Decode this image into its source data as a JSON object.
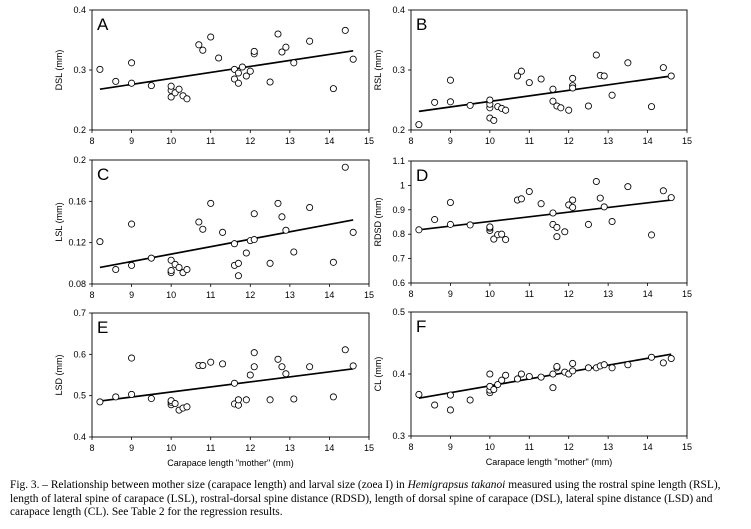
{
  "figure": {
    "caption": {
      "before": "Fig. 3. – Relationship between mother size (carapace length) and larval size (zoea I) in ",
      "species": "Hemigrapsus takanoi",
      "after": " measured using the rostral spine length (RSL), length of lateral spine of carapace (LSL), rostral-dorsal spine distance (RDSD), length of dorsal spine of carapace (DSL), lateral spine distance (LSD) and carapace length (CL). See Table 2 for the regression results."
    }
  },
  "chart_data": [
    {
      "panel": "A",
      "type": "scatter",
      "ylabel": "DSL (mm)",
      "xlabel": "",
      "xlim": [
        8,
        15
      ],
      "ylim": [
        0.2,
        0.4
      ],
      "xticks": [
        "8",
        "9",
        "10",
        "11",
        "12",
        "13",
        "14",
        "15"
      ],
      "yticks": [
        "0.2",
        "0.3",
        "0.4"
      ],
      "trendline": [
        [
          8.2,
          0.268
        ],
        [
          14.6,
          0.332
        ]
      ],
      "points": [
        [
          8.2,
          0.301
        ],
        [
          8.6,
          0.281
        ],
        [
          9.0,
          0.278
        ],
        [
          9.0,
          0.312
        ],
        [
          9.5,
          0.274
        ],
        [
          10.0,
          0.255
        ],
        [
          10.0,
          0.266
        ],
        [
          10.0,
          0.273
        ],
        [
          10.1,
          0.262
        ],
        [
          10.2,
          0.268
        ],
        [
          10.3,
          0.257
        ],
        [
          10.4,
          0.252
        ],
        [
          10.7,
          0.342
        ],
        [
          10.8,
          0.333
        ],
        [
          11.0,
          0.355
        ],
        [
          11.2,
          0.32
        ],
        [
          11.6,
          0.285
        ],
        [
          11.6,
          0.301
        ],
        [
          11.7,
          0.278
        ],
        [
          11.7,
          0.295
        ],
        [
          11.8,
          0.305
        ],
        [
          11.9,
          0.29
        ],
        [
          12.0,
          0.298
        ],
        [
          12.1,
          0.327
        ],
        [
          12.1,
          0.331
        ],
        [
          12.5,
          0.28
        ],
        [
          12.7,
          0.36
        ],
        [
          12.8,
          0.33
        ],
        [
          12.9,
          0.338
        ],
        [
          13.1,
          0.312
        ],
        [
          13.5,
          0.348
        ],
        [
          14.1,
          0.269
        ],
        [
          14.4,
          0.366
        ],
        [
          14.6,
          0.318
        ]
      ]
    },
    {
      "panel": "B",
      "type": "scatter",
      "ylabel": "RSL (mm)",
      "xlabel": "",
      "xlim": [
        8,
        15
      ],
      "ylim": [
        0.2,
        0.4
      ],
      "xticks": [
        "8",
        "9",
        "10",
        "11",
        "12",
        "13",
        "14",
        "15"
      ],
      "yticks": [
        "0.2",
        "0.3",
        "0.4"
      ],
      "trendline": [
        [
          8.2,
          0.231
        ],
        [
          14.6,
          0.29
        ]
      ],
      "points": [
        [
          8.2,
          0.209
        ],
        [
          8.6,
          0.246
        ],
        [
          9.0,
          0.247
        ],
        [
          9.0,
          0.283
        ],
        [
          9.5,
          0.241
        ],
        [
          10.0,
          0.237
        ],
        [
          10.0,
          0.243
        ],
        [
          10.0,
          0.25
        ],
        [
          10.0,
          0.22
        ],
        [
          10.1,
          0.216
        ],
        [
          10.2,
          0.239
        ],
        [
          10.3,
          0.236
        ],
        [
          10.4,
          0.233
        ],
        [
          10.7,
          0.29
        ],
        [
          10.8,
          0.298
        ],
        [
          11.0,
          0.279
        ],
        [
          11.3,
          0.285
        ],
        [
          11.6,
          0.248
        ],
        [
          11.6,
          0.268
        ],
        [
          11.7,
          0.24
        ],
        [
          11.8,
          0.237
        ],
        [
          12.0,
          0.233
        ],
        [
          12.1,
          0.274
        ],
        [
          12.1,
          0.286
        ],
        [
          12.1,
          0.27
        ],
        [
          12.5,
          0.24
        ],
        [
          12.7,
          0.325
        ],
        [
          12.8,
          0.291
        ],
        [
          12.9,
          0.29
        ],
        [
          13.1,
          0.258
        ],
        [
          13.5,
          0.312
        ],
        [
          14.1,
          0.239
        ],
        [
          14.4,
          0.304
        ],
        [
          14.6,
          0.29
        ]
      ]
    },
    {
      "panel": "C",
      "type": "scatter",
      "ylabel": "LSL (mm)",
      "xlabel": "",
      "xlim": [
        8,
        15
      ],
      "ylim": [
        0.08,
        0.2
      ],
      "xticks": [
        "8",
        "9",
        "10",
        "11",
        "12",
        "13",
        "14",
        "15"
      ],
      "yticks": [
        "0.08",
        "0.12",
        "0.16",
        "0.2"
      ],
      "trendline": [
        [
          8.2,
          0.096
        ],
        [
          14.6,
          0.142
        ]
      ],
      "points": [
        [
          8.2,
          0.121
        ],
        [
          8.6,
          0.094
        ],
        [
          9.0,
          0.098
        ],
        [
          9.0,
          0.138
        ],
        [
          9.5,
          0.105
        ],
        [
          10.0,
          0.091
        ],
        [
          10.0,
          0.093
        ],
        [
          10.0,
          0.103
        ],
        [
          10.1,
          0.099
        ],
        [
          10.2,
          0.096
        ],
        [
          10.3,
          0.091
        ],
        [
          10.4,
          0.094
        ],
        [
          10.7,
          0.14
        ],
        [
          10.8,
          0.133
        ],
        [
          11.0,
          0.158
        ],
        [
          11.3,
          0.13
        ],
        [
          11.6,
          0.098
        ],
        [
          11.6,
          0.119
        ],
        [
          11.7,
          0.088
        ],
        [
          11.7,
          0.1
        ],
        [
          11.9,
          0.11
        ],
        [
          12.0,
          0.122
        ],
        [
          12.1,
          0.148
        ],
        [
          12.1,
          0.123
        ],
        [
          12.5,
          0.1
        ],
        [
          12.7,
          0.158
        ],
        [
          12.8,
          0.145
        ],
        [
          12.9,
          0.132
        ],
        [
          13.1,
          0.111
        ],
        [
          13.5,
          0.154
        ],
        [
          14.1,
          0.101
        ],
        [
          14.4,
          0.193
        ],
        [
          14.6,
          0.13
        ]
      ]
    },
    {
      "panel": "D",
      "type": "scatter",
      "ylabel": "RDSD (mm)",
      "xlabel": "",
      "xlim": [
        8,
        15
      ],
      "ylim": [
        0.6,
        1.1
      ],
      "xticks": [
        "8",
        "9",
        "10",
        "11",
        "12",
        "13",
        "14",
        "15"
      ],
      "yticks": [
        "0.6",
        "0.7",
        "0.8",
        "0.9",
        "1",
        "1.1"
      ],
      "trendline": [
        [
          8.2,
          0.818
        ],
        [
          14.6,
          0.94
        ]
      ],
      "points": [
        [
          8.2,
          0.818
        ],
        [
          8.6,
          0.86
        ],
        [
          9.0,
          0.84
        ],
        [
          9.0,
          0.93
        ],
        [
          9.5,
          0.838
        ],
        [
          10.0,
          0.815
        ],
        [
          10.0,
          0.825
        ],
        [
          10.0,
          0.83
        ],
        [
          10.1,
          0.78
        ],
        [
          10.2,
          0.798
        ],
        [
          10.3,
          0.8
        ],
        [
          10.4,
          0.778
        ],
        [
          10.7,
          0.94
        ],
        [
          10.8,
          0.945
        ],
        [
          11.0,
          0.975
        ],
        [
          11.3,
          0.925
        ],
        [
          11.6,
          0.84
        ],
        [
          11.6,
          0.887
        ],
        [
          11.7,
          0.79
        ],
        [
          11.7,
          0.828
        ],
        [
          11.9,
          0.81
        ],
        [
          12.0,
          0.92
        ],
        [
          12.1,
          0.94
        ],
        [
          12.1,
          0.91
        ],
        [
          12.5,
          0.84
        ],
        [
          12.7,
          1.016
        ],
        [
          12.8,
          0.948
        ],
        [
          12.9,
          0.912
        ],
        [
          13.1,
          0.852
        ],
        [
          13.5,
          0.995
        ],
        [
          14.1,
          0.797
        ],
        [
          14.4,
          0.978
        ],
        [
          14.6,
          0.95
        ]
      ]
    },
    {
      "panel": "E",
      "type": "scatter",
      "ylabel": "LSD (mm)",
      "xlabel": "Carapace length \"mother\" (mm)",
      "xlim": [
        8,
        15
      ],
      "ylim": [
        0.4,
        0.7
      ],
      "xticks": [
        "8",
        "9",
        "10",
        "11",
        "12",
        "13",
        "14",
        "15"
      ],
      "yticks": [
        "0.4",
        "0.5",
        "0.6",
        "0.7"
      ],
      "trendline": [
        [
          8.2,
          0.487
        ],
        [
          14.6,
          0.565
        ]
      ],
      "points": [
        [
          8.2,
          0.485
        ],
        [
          8.6,
          0.497
        ],
        [
          9.0,
          0.503
        ],
        [
          9.0,
          0.591
        ],
        [
          9.5,
          0.493
        ],
        [
          10.0,
          0.478
        ],
        [
          10.0,
          0.484
        ],
        [
          10.0,
          0.488
        ],
        [
          10.1,
          0.481
        ],
        [
          10.2,
          0.465
        ],
        [
          10.3,
          0.47
        ],
        [
          10.4,
          0.473
        ],
        [
          10.7,
          0.573
        ],
        [
          10.8,
          0.573
        ],
        [
          11.0,
          0.581
        ],
        [
          11.3,
          0.577
        ],
        [
          11.6,
          0.48
        ],
        [
          11.6,
          0.53
        ],
        [
          11.7,
          0.477
        ],
        [
          11.7,
          0.49
        ],
        [
          11.9,
          0.49
        ],
        [
          12.0,
          0.55
        ],
        [
          12.1,
          0.57
        ],
        [
          12.1,
          0.604
        ],
        [
          12.5,
          0.49
        ],
        [
          12.7,
          0.588
        ],
        [
          12.8,
          0.57
        ],
        [
          12.9,
          0.553
        ],
        [
          13.1,
          0.492
        ],
        [
          13.5,
          0.57
        ],
        [
          14.1,
          0.497
        ],
        [
          14.4,
          0.611
        ],
        [
          14.6,
          0.572
        ]
      ]
    },
    {
      "panel": "F",
      "type": "scatter",
      "ylabel": "CL (mm)",
      "xlabel": "Carapace length \"mother\" (mm)",
      "xlim": [
        8,
        15
      ],
      "ylim": [
        0.3,
        0.5
      ],
      "xticks": [
        "8",
        "9",
        "10",
        "11",
        "12",
        "13",
        "14",
        "15"
      ],
      "yticks": [
        "0.3",
        "0.4",
        "0.5"
      ],
      "trendline": [
        [
          8.2,
          0.361
        ],
        [
          14.6,
          0.432
        ]
      ],
      "points": [
        [
          8.2,
          0.367
        ],
        [
          8.6,
          0.35
        ],
        [
          9.0,
          0.342
        ],
        [
          9.0,
          0.366
        ],
        [
          9.5,
          0.358
        ],
        [
          10.0,
          0.37
        ],
        [
          10.0,
          0.374
        ],
        [
          10.0,
          0.38
        ],
        [
          10.0,
          0.4
        ],
        [
          10.1,
          0.375
        ],
        [
          10.2,
          0.383
        ],
        [
          10.3,
          0.39
        ],
        [
          10.4,
          0.398
        ],
        [
          10.7,
          0.392
        ],
        [
          10.8,
          0.4
        ],
        [
          11.0,
          0.396
        ],
        [
          11.3,
          0.395
        ],
        [
          11.6,
          0.378
        ],
        [
          11.6,
          0.4
        ],
        [
          11.7,
          0.41
        ],
        [
          11.7,
          0.412
        ],
        [
          11.9,
          0.403
        ],
        [
          12.0,
          0.4
        ],
        [
          12.1,
          0.405
        ],
        [
          12.1,
          0.417
        ],
        [
          12.5,
          0.41
        ],
        [
          12.7,
          0.41
        ],
        [
          12.8,
          0.413
        ],
        [
          12.9,
          0.415
        ],
        [
          13.1,
          0.41
        ],
        [
          13.5,
          0.415
        ],
        [
          14.1,
          0.427
        ],
        [
          14.4,
          0.418
        ],
        [
          14.6,
          0.425
        ]
      ]
    }
  ]
}
